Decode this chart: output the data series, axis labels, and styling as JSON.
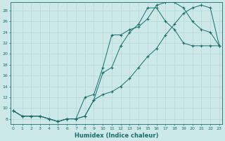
{
  "xlabel": "Humidex (Indice chaleur)",
  "bg_color": "#cce8e8",
  "line_color": "#1a6e6a",
  "grid_color": "#b8d8d8",
  "xlim": [
    -0.3,
    23.3
  ],
  "ylim": [
    7,
    29.5
  ],
  "xticks": [
    0,
    1,
    2,
    3,
    4,
    5,
    6,
    7,
    8,
    9,
    10,
    11,
    12,
    13,
    14,
    15,
    16,
    17,
    18,
    19,
    20,
    21,
    22,
    23
  ],
  "yticks": [
    8,
    10,
    12,
    14,
    16,
    18,
    20,
    22,
    24,
    26,
    28
  ],
  "line1_x": [
    0,
    1,
    2,
    3,
    4,
    5,
    6,
    7,
    8,
    9,
    10,
    11,
    12,
    13,
    14,
    15,
    16,
    17,
    18,
    19,
    20,
    21,
    22,
    23
  ],
  "line1_y": [
    9.5,
    8.5,
    8.5,
    8.5,
    8.0,
    7.5,
    8.0,
    8.0,
    12.0,
    12.5,
    17.5,
    23.5,
    23.5,
    24.5,
    25.0,
    26.5,
    29.0,
    29.5,
    29.5,
    28.5,
    26.0,
    24.5,
    24.0,
    21.5
  ],
  "line2_x": [
    0,
    1,
    2,
    3,
    4,
    5,
    6,
    7,
    8,
    9,
    10,
    11,
    12,
    13,
    14,
    15,
    16,
    17,
    18,
    19,
    20,
    21,
    22,
    23
  ],
  "line2_y": [
    9.5,
    8.5,
    8.5,
    8.5,
    8.0,
    7.5,
    8.0,
    8.0,
    8.5,
    11.5,
    16.5,
    17.5,
    21.5,
    24.0,
    25.5,
    28.5,
    28.5,
    26.0,
    24.5,
    22.0,
    21.5,
    21.5,
    21.5,
    21.5
  ],
  "line3_x": [
    0,
    1,
    2,
    3,
    4,
    5,
    6,
    7,
    8,
    9,
    10,
    11,
    12,
    13,
    14,
    15,
    16,
    17,
    18,
    19,
    20,
    21,
    22,
    23
  ],
  "line3_y": [
    9.5,
    8.5,
    8.5,
    8.5,
    8.0,
    7.5,
    8.0,
    8.0,
    8.5,
    11.5,
    12.5,
    13.0,
    14.0,
    15.5,
    17.5,
    19.5,
    21.0,
    23.5,
    25.5,
    27.5,
    28.5,
    29.0,
    28.5,
    21.5
  ]
}
